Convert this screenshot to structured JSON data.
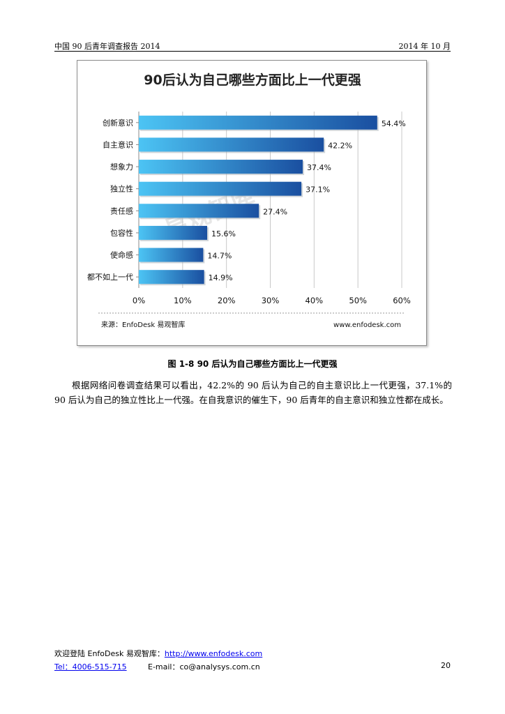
{
  "header": {
    "left": "中国 90 后青年调查报告 2014",
    "right": "2014 年 10 月"
  },
  "chart_data": {
    "type": "bar",
    "orientation": "horizontal",
    "title": "90后认为自己哪些方面比上一代更强",
    "categories": [
      "创新意识",
      "自主意识",
      "想象力",
      "独立性",
      "责任感",
      "包容性",
      "使命感",
      "都不如上一代"
    ],
    "values": [
      54.4,
      42.2,
      37.4,
      37.1,
      27.4,
      15.6,
      14.7,
      14.9
    ],
    "value_labels": [
      "54.4%",
      "42.2%",
      "37.4%",
      "37.1%",
      "27.4%",
      "15.6%",
      "14.7%",
      "14.9%"
    ],
    "xlim": [
      0,
      60
    ],
    "xticks": [
      0,
      10,
      20,
      30,
      40,
      50,
      60
    ],
    "xtick_labels": [
      "0%",
      "10%",
      "20%",
      "30%",
      "40%",
      "50%",
      "60%"
    ],
    "grid": "vertical",
    "colors": {
      "bar_start": "#4cc4f4",
      "bar_end": "#1a4fa0",
      "grid": "#c8c8c8"
    },
    "source": "来源：EnfoDesk 易观智库",
    "website": "www.enfodesk.com",
    "watermark": "易观智库"
  },
  "caption": "图  1-8    90 后认为自己哪些方面比上一代更强",
  "paragraph": "根据网络问卷调查结果可以看出，42.2%的 90 后认为自己的自主意识比上一代更强，37.1%的 90 后认为自己的独立性比上一代强。在自我意识的催生下，90 后青年的自主意识和独立性都在成长。",
  "footer": {
    "welcome_prefix": "欢迎登陆 EnfoDesk 易观智库：",
    "site_url": "http://www.enfodesk.com",
    "tel": "Tel：4006-515-715",
    "email": "E-mail：co@analysys.com.cn",
    "page_number": "20"
  }
}
